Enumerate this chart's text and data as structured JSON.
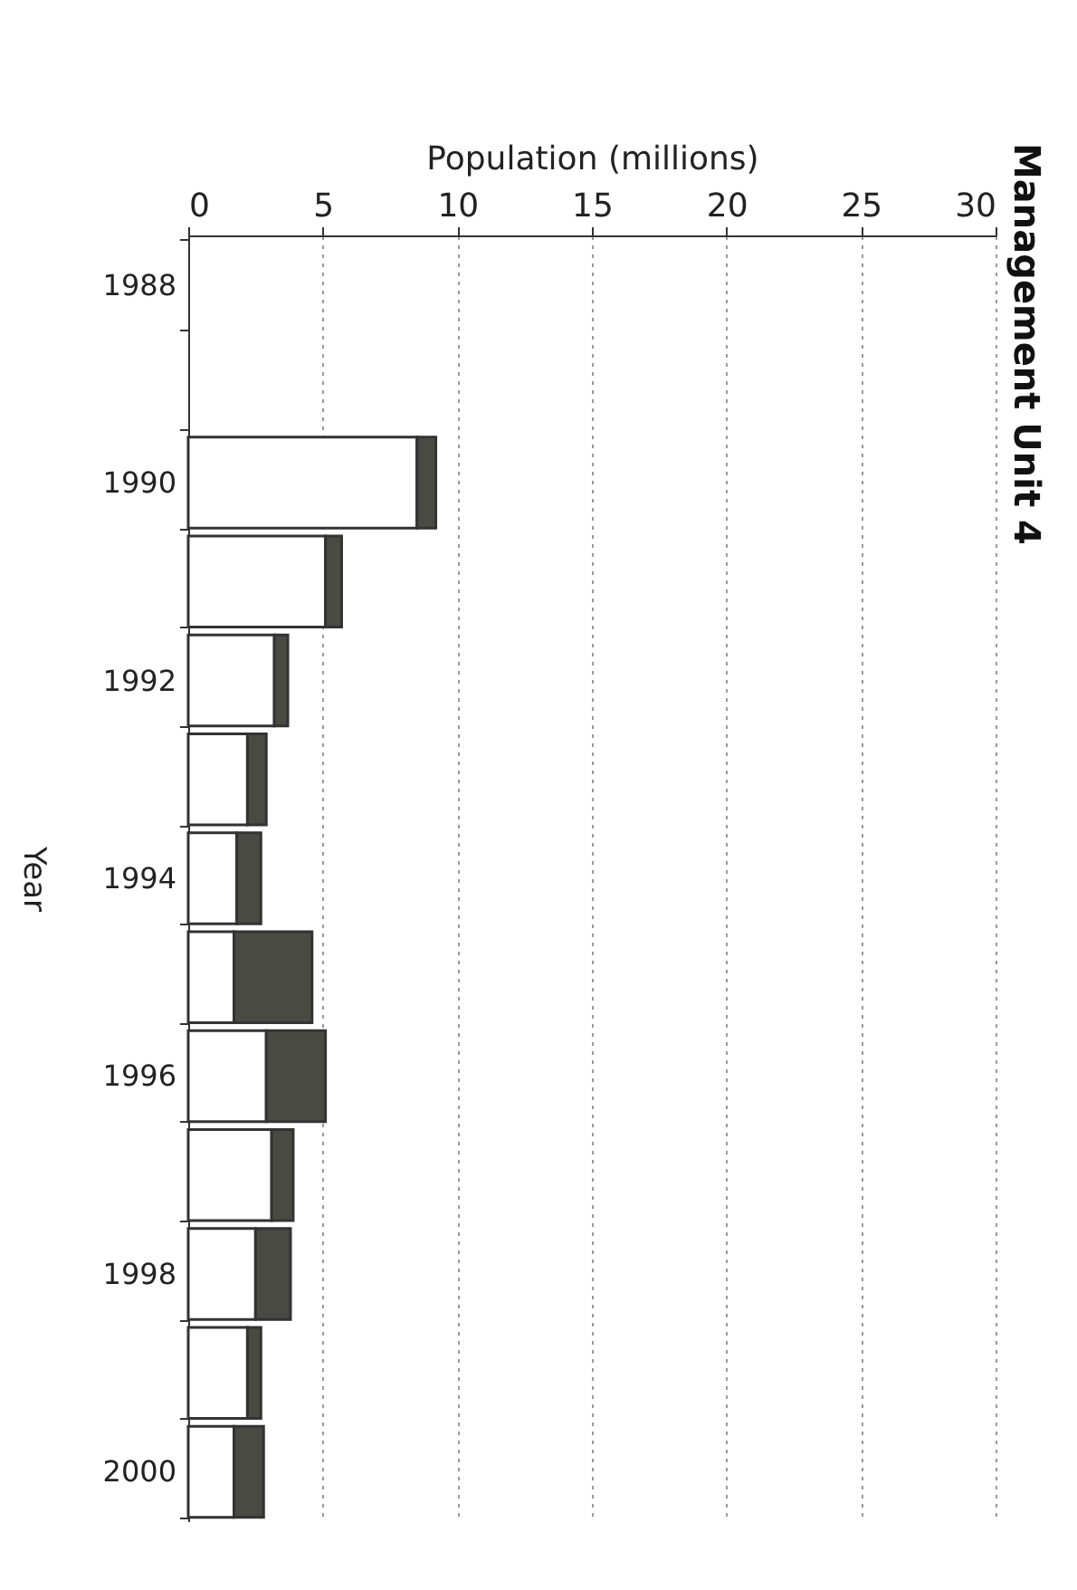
{
  "chart_data": {
    "type": "bar",
    "stacked": true,
    "orientation": "horizontal",
    "title": "Management Unit 4",
    "xlabel": "Population (millions)",
    "ylabel": "Year",
    "categories": [
      "1988",
      null,
      "1990",
      null,
      "1992",
      null,
      "1994",
      null,
      "1996",
      null,
      "1998",
      null,
      "2000"
    ],
    "series": [
      {
        "color": "#ffffff",
        "values": [
          null,
          null,
          8.5,
          5.1,
          3.2,
          2.2,
          1.8,
          1.7,
          2.9,
          3.1,
          2.5,
          2.2,
          1.7
        ]
      },
      {
        "color": "#4a4a44",
        "values": [
          null,
          null,
          0.7,
          0.6,
          0.5,
          0.7,
          0.9,
          2.9,
          2.2,
          0.8,
          1.3,
          0.5,
          1.1
        ]
      }
    ],
    "xlim": [
      0,
      30
    ],
    "xticks": [
      0,
      5,
      10,
      15,
      20,
      25,
      30
    ],
    "grid": "x",
    "legend": false
  }
}
